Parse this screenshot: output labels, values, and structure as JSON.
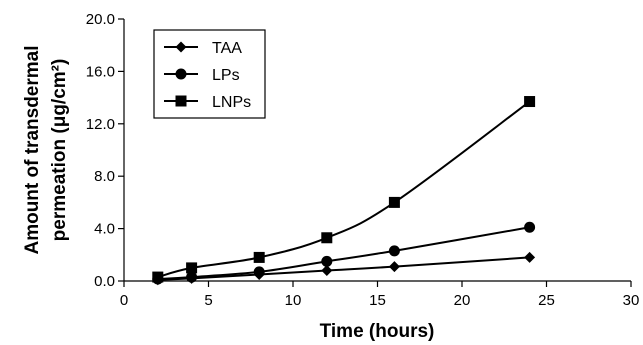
{
  "chart_data": {
    "type": "line",
    "title": "",
    "xlabel": "Time (hours)",
    "ylabel_line1": "Amount of transdermal",
    "ylabel_line2": "permeation (μg/cm²)",
    "xlim": [
      0,
      30
    ],
    "ylim": [
      0,
      20
    ],
    "xticks": [
      0,
      5,
      10,
      15,
      20,
      25,
      30
    ],
    "yticks": [
      "0.0",
      "4.0",
      "8.0",
      "12.0",
      "16.0",
      "20.0"
    ],
    "grid": false,
    "legend_position": "top-left",
    "x": [
      2,
      4,
      8,
      12,
      16,
      24
    ],
    "series": [
      {
        "name": "TAA",
        "marker": "diamond",
        "values": [
          0.1,
          0.2,
          0.5,
          0.8,
          1.1,
          1.8
        ]
      },
      {
        "name": "LPs",
        "marker": "circle",
        "values": [
          0.15,
          0.3,
          0.7,
          1.5,
          2.3,
          4.1
        ]
      },
      {
        "name": "LNPs",
        "marker": "square",
        "values": [
          0.3,
          1.0,
          1.8,
          3.3,
          6.0,
          13.7
        ]
      }
    ],
    "colors": {
      "line": "#000000",
      "marker": "#000000"
    }
  }
}
